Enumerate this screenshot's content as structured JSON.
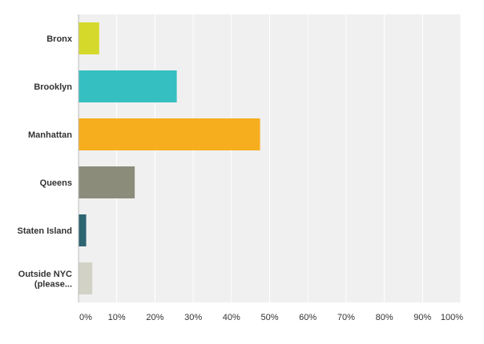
{
  "chart_data": {
    "type": "bar",
    "orientation": "horizontal",
    "categories": [
      {
        "lines": [
          "Bronx"
        ],
        "color": "#d5d92b"
      },
      {
        "lines": [
          "Brooklyn"
        ],
        "color": "#35bfc1"
      },
      {
        "lines": [
          "Manhattan"
        ],
        "color": "#f7ae1e"
      },
      {
        "lines": [
          "Queens"
        ],
        "color": "#8b8c7a"
      },
      {
        "lines": [
          "Staten Island"
        ],
        "color": "#2d6571"
      },
      {
        "lines": [
          "Outside NYC",
          "(please..."
        ],
        "color": "#d2d2c6"
      }
    ],
    "values": [
      5.4,
      25.7,
      47.5,
      14.7,
      2.0,
      3.6
    ],
    "xlim": [
      0,
      100
    ],
    "ticks": [
      "0%",
      "10%",
      "20%",
      "30%",
      "40%",
      "50%",
      "60%",
      "70%",
      "80%",
      "90%",
      "100%"
    ],
    "grid": true,
    "background": "#f0f0f0"
  }
}
